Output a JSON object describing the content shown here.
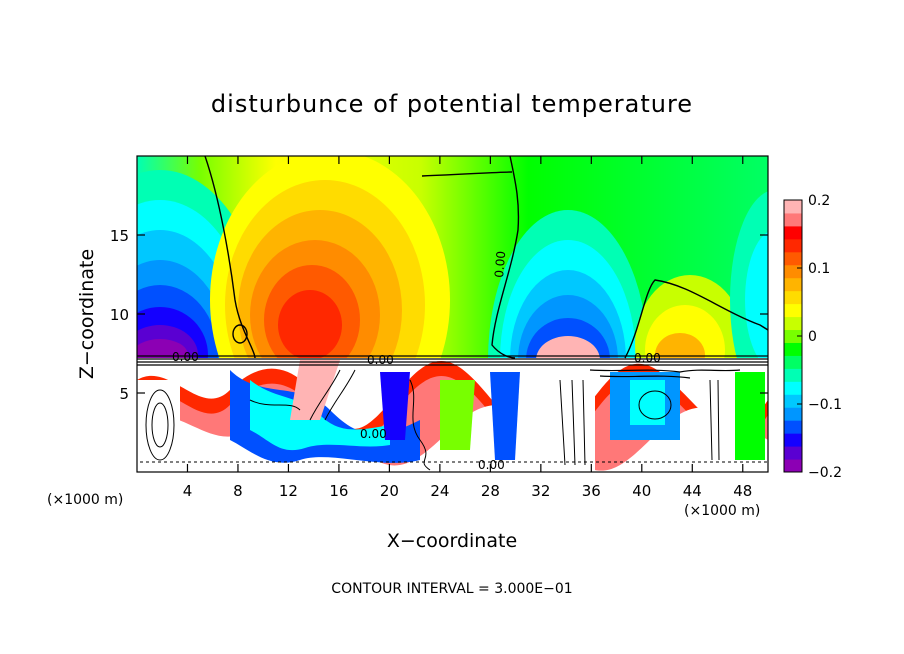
{
  "chart_data": {
    "type": "heatmap",
    "title": "disturbunce of potential temperature",
    "xlabel": "X−coordinate",
    "ylabel": "Z−coordinate",
    "x_unit_label": "(×1000 m)",
    "x_unit_label_right": "(×1000 m)",
    "footer": "CONTOUR INTERVAL = 3.000E−01",
    "xlim": [
      0,
      50
    ],
    "ylim": [
      0,
      20
    ],
    "x_ticks": [
      "4",
      "8",
      "12",
      "16",
      "20",
      "24",
      "28",
      "32",
      "36",
      "40",
      "44",
      "48"
    ],
    "y_ticks": [
      "5",
      "10",
      "15"
    ],
    "colorbar": {
      "range": [
        -0.2,
        0.2
      ],
      "tick_labels": [
        "0.2",
        "0.1",
        "0",
        "−0.1",
        "−0.2"
      ],
      "colors": [
        "#8c00b4",
        "#5a00d2",
        "#1400ff",
        "#0050ff",
        "#0096ff",
        "#00c8ff",
        "#00ffff",
        "#00ffb4",
        "#00ff64",
        "#00ff00",
        "#78ff00",
        "#c8ff00",
        "#ffff00",
        "#ffdc00",
        "#ffb400",
        "#ff8c00",
        "#ff5a00",
        "#ff2800",
        "#ff0000",
        "#ff7878",
        "#ffb4b4"
      ]
    },
    "contour_labels": [
      "0.00",
      "0.00",
      "0.00",
      "0.00",
      "0.00",
      "0.00"
    ]
  }
}
